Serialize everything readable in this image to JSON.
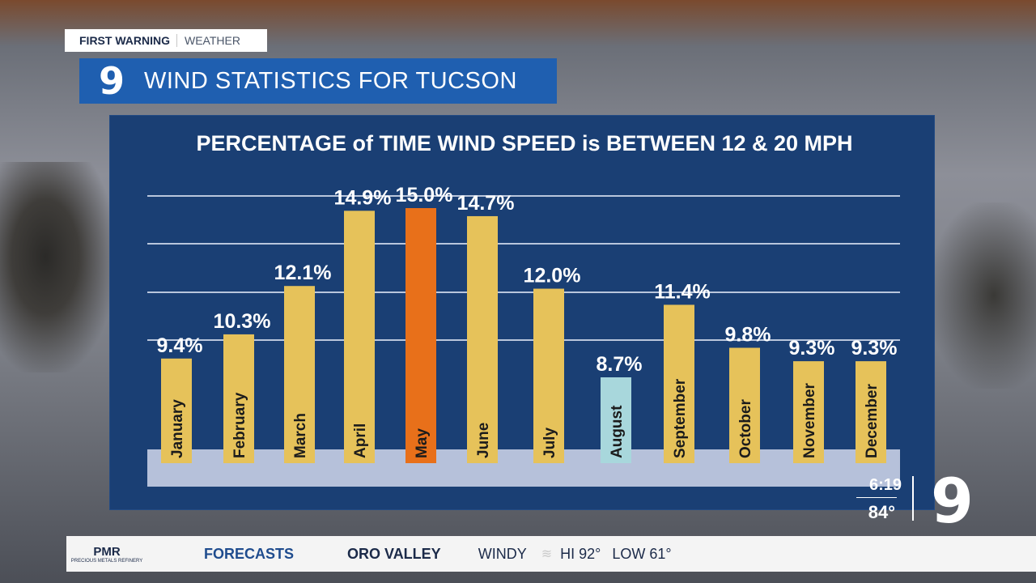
{
  "branding": {
    "first_warning": "FIRST WARNING",
    "weather": "WEATHER",
    "logo": "9"
  },
  "header": {
    "title": "WIND STATISTICS FOR TUCSON"
  },
  "chart_data": {
    "type": "bar",
    "title": "PERCENTAGE of TIME WIND SPEED is BETWEEN 12 & 20 MPH",
    "categories": [
      "January",
      "February",
      "March",
      "April",
      "May",
      "June",
      "July",
      "August",
      "September",
      "October",
      "November",
      "December"
    ],
    "values": [
      9.4,
      10.3,
      12.1,
      14.9,
      15.0,
      14.7,
      12.0,
      8.7,
      11.4,
      9.8,
      9.3,
      9.3
    ],
    "data_labels": [
      "9.4%",
      "10.3%",
      "12.1%",
      "14.9%",
      "15.0%",
      "14.7%",
      "12.0%",
      "8.7%",
      "11.4%",
      "9.8%",
      "9.3%",
      "9.3%"
    ],
    "grid": true,
    "colors": {
      "default": "#e6c25a",
      "highlight": "#e8701a",
      "low": "#a8d7dc"
    },
    "highlight_index": 4,
    "low_index": 7
  },
  "status": {
    "time": "6:19",
    "temp": "84°",
    "logo": "9"
  },
  "ticker": {
    "sponsor": "PMR",
    "sponsor_sub": "PRECIOUS METALS REFINERY",
    "section": "FORECASTS",
    "location": "ORO VALLEY",
    "condition": "WINDY",
    "hi": "HI 92°",
    "low": "LOW 61°"
  }
}
